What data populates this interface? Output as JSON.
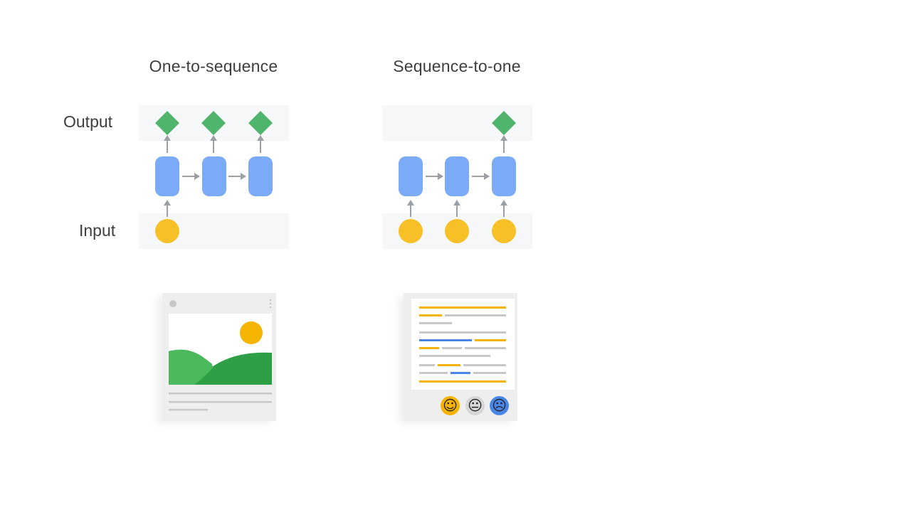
{
  "diagram": {
    "left_title": "One-to-sequence",
    "right_title": "Sequence-to-one",
    "row_labels": {
      "output": "Output",
      "input": "Input"
    }
  },
  "colors": {
    "cell": "#7baaf7",
    "output_diamond": "#34a853",
    "input_dot": "#f6c026",
    "arrow": "#9aa0a6",
    "band": "#f6f7f9",
    "sun": "#f5b400",
    "hill_light": "#4cb85c",
    "hill_dark": "#2e9f45",
    "sentiment_positive": "#f6b400",
    "sentiment_neutral": "#d6d6d6",
    "sentiment_negative": "#4a86e8"
  },
  "icons": {
    "left_card": "image-post-icon",
    "right_card": "text-review-icon",
    "faces": [
      "happy-face-icon",
      "neutral-face-icon",
      "sad-face-icon"
    ]
  }
}
